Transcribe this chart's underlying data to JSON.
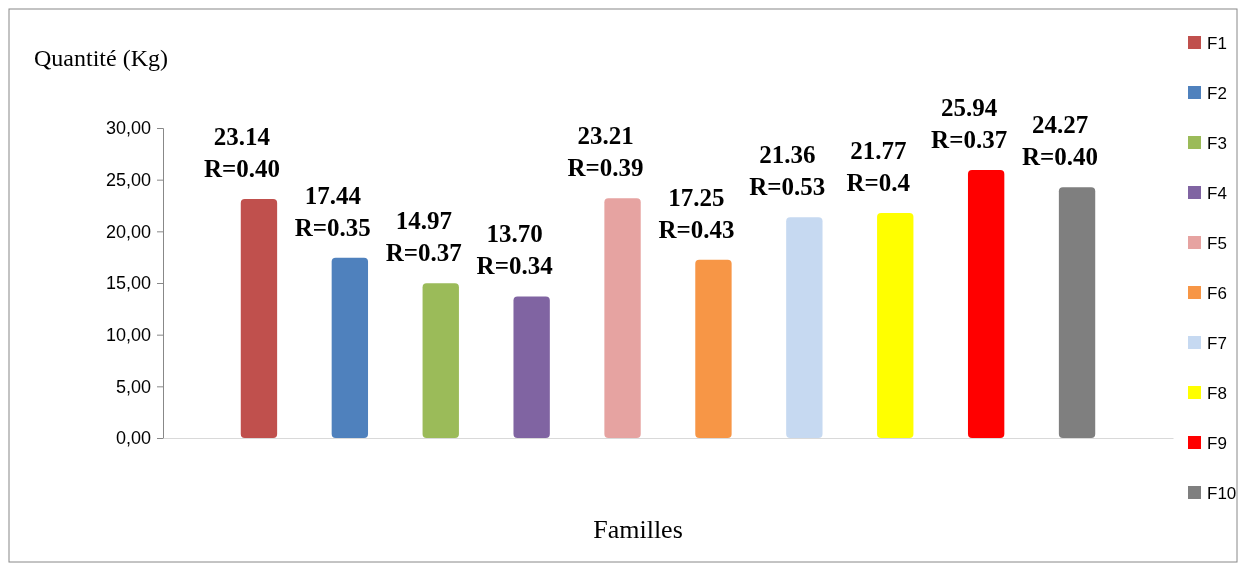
{
  "chart_data": {
    "type": "bar",
    "xlabel": "Familles",
    "ylabel": "Quantité (Kg)",
    "categories": [
      null
    ],
    "ylim": [
      0,
      30
    ],
    "yticks": [
      {
        "value": 0,
        "label": "0,00"
      },
      {
        "value": 5,
        "label": "5,00"
      },
      {
        "value": 10,
        "label": "10,00"
      },
      {
        "value": 15,
        "label": "15,00"
      },
      {
        "value": 20,
        "label": "20,00"
      },
      {
        "value": 25,
        "label": "25,00"
      },
      {
        "value": 30,
        "label": "30,00"
      }
    ],
    "tick_labels": "y",
    "grid": false,
    "legend": "right",
    "series": [
      {
        "name": "F1",
        "color": "#c0504d",
        "values": [
          23.14
        ],
        "value_labels": [
          "23.14\nR=0.40"
        ]
      },
      {
        "name": "F2",
        "color": "#4f81bd",
        "values": [
          17.44
        ],
        "value_labels": [
          "17.44\nR=0.35"
        ]
      },
      {
        "name": "F3",
        "color": "#9bbb59",
        "values": [
          14.97
        ],
        "value_labels": [
          "14.97\nR=0.37"
        ]
      },
      {
        "name": "F4",
        "color": "#8064a2",
        "values": [
          13.7
        ],
        "value_labels": [
          "13.70\nR=0.34"
        ]
      },
      {
        "name": "F5",
        "color": "#e6a3a1",
        "values": [
          23.21
        ],
        "value_labels": [
          "23.21\nR=0.39"
        ]
      },
      {
        "name": "F6",
        "color": "#f79646",
        "values": [
          17.25
        ],
        "value_labels": [
          "17.25\nR=0.43"
        ]
      },
      {
        "name": "F7",
        "color": "#c6d9f1",
        "values": [
          21.36
        ],
        "value_labels": [
          "21.36\nR=0.53"
        ]
      },
      {
        "name": "F8",
        "color": "#ffff00",
        "values": [
          21.77
        ],
        "value_labels": [
          "21.77\nR=0.4"
        ]
      },
      {
        "name": "F9",
        "color": "#ff0000",
        "values": [
          25.94
        ],
        "value_labels": [
          "25.94\nR=0.37"
        ]
      },
      {
        "name": "F10",
        "color": "#7f7f7f",
        "values": [
          24.27
        ],
        "value_labels": [
          "24.27\nR=0.40"
        ]
      }
    ]
  }
}
